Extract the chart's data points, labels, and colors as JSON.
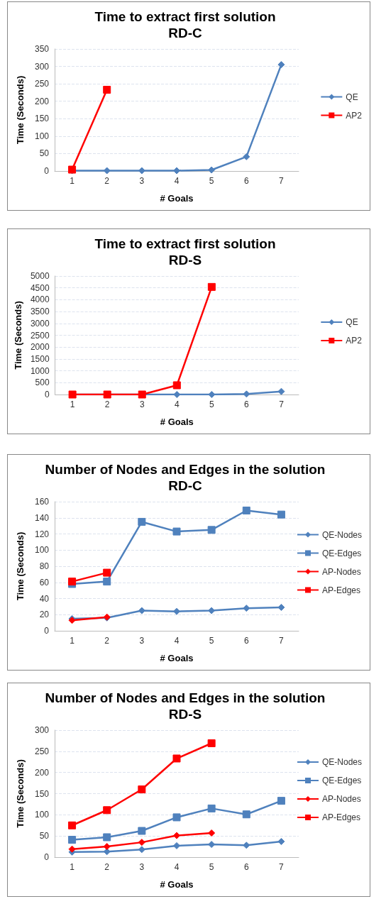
{
  "chart_data": [
    {
      "type": "line",
      "title": "Time to extract first solution",
      "subtitle": "RD-C",
      "xlabel": "# Goals",
      "ylabel": "Time (Seconds)",
      "categories": [
        "1",
        "2",
        "3",
        "4",
        "5",
        "6",
        "7"
      ],
      "ylim": [
        0,
        350
      ],
      "yticks": [
        0,
        50,
        100,
        150,
        200,
        250,
        300,
        350
      ],
      "grid": "y",
      "legend": "right",
      "series": [
        {
          "name": "QE",
          "color": "#4f81bd",
          "marker": "diamond",
          "values": [
            1,
            1,
            1,
            1,
            3,
            41,
            305
          ]
        },
        {
          "name": "AP2",
          "color": "#ff0000",
          "marker": "square",
          "values": [
            4,
            233,
            null,
            null,
            null,
            null,
            null
          ]
        }
      ]
    },
    {
      "type": "line",
      "title": "Time to extract first solution",
      "subtitle": "RD-S",
      "xlabel": "# Goals",
      "ylabel": "Time (Seconds)",
      "categories": [
        "1",
        "2",
        "3",
        "4",
        "5",
        "6",
        "7"
      ],
      "ylim": [
        0,
        5000
      ],
      "yticks": [
        0,
        500,
        1000,
        1500,
        2000,
        2500,
        3000,
        3500,
        4000,
        4500,
        5000
      ],
      "grid": "y",
      "legend": "right",
      "series": [
        {
          "name": "QE",
          "color": "#4f81bd",
          "marker": "diamond",
          "values": [
            0,
            0,
            0,
            0,
            0,
            20,
            130
          ]
        },
        {
          "name": "AP2",
          "color": "#ff0000",
          "marker": "square",
          "values": [
            0,
            0,
            0,
            390,
            4540,
            null,
            null
          ]
        }
      ]
    },
    {
      "type": "line",
      "title": "Number of Nodes and Edges in the solution",
      "subtitle": "RD-C",
      "xlabel": "# Goals",
      "ylabel": "Time (Seconds)",
      "categories": [
        "1",
        "2",
        "3",
        "4",
        "5",
        "6",
        "7"
      ],
      "ylim": [
        0,
        160
      ],
      "yticks": [
        0,
        20,
        40,
        60,
        80,
        100,
        120,
        140,
        160
      ],
      "grid": "y",
      "legend": "right",
      "series": [
        {
          "name": "QE-Nodes",
          "color": "#4f81bd",
          "marker": "diamond",
          "values": [
            15,
            16,
            25,
            24,
            25,
            28,
            29
          ]
        },
        {
          "name": "QE-Edges",
          "color": "#4f81bd",
          "marker": "square",
          "values": [
            58,
            61,
            135,
            123,
            125,
            149,
            144
          ]
        },
        {
          "name": "AP-Nodes",
          "color": "#ff0000",
          "marker": "diamond",
          "values": [
            13,
            17,
            null,
            null,
            null,
            null,
            null
          ]
        },
        {
          "name": "AP-Edges",
          "color": "#ff0000",
          "marker": "square",
          "values": [
            61,
            72,
            null,
            null,
            null,
            null,
            null
          ]
        }
      ]
    },
    {
      "type": "line",
      "title": "Number of Nodes and Edges in the solution",
      "subtitle": "RD-S",
      "xlabel": "# Goals",
      "ylabel": "Time (Seconds)",
      "categories": [
        "1",
        "2",
        "3",
        "4",
        "5",
        "6",
        "7"
      ],
      "ylim": [
        0,
        300
      ],
      "yticks": [
        0,
        50,
        100,
        150,
        200,
        250,
        300
      ],
      "grid": "y",
      "legend": "right",
      "series": [
        {
          "name": "QE-Nodes",
          "color": "#4f81bd",
          "marker": "diamond",
          "values": [
            12,
            13,
            18,
            27,
            30,
            28,
            37
          ]
        },
        {
          "name": "QE-Edges",
          "color": "#4f81bd",
          "marker": "square",
          "values": [
            41,
            47,
            62,
            94,
            115,
            101,
            133
          ]
        },
        {
          "name": "AP-Nodes",
          "color": "#ff0000",
          "marker": "diamond",
          "values": [
            19,
            25,
            35,
            51,
            57,
            null,
            null
          ]
        },
        {
          "name": "AP-Edges",
          "color": "#ff0000",
          "marker": "square",
          "values": [
            75,
            111,
            160,
            233,
            269,
            null,
            null
          ]
        }
      ]
    }
  ]
}
